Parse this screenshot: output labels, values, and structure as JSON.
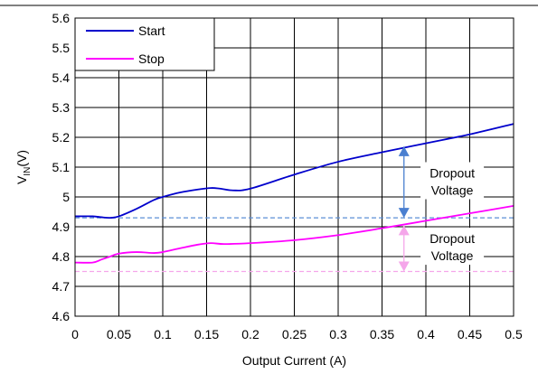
{
  "chart_data": {
    "type": "line",
    "xlabel": "Output Current (A)",
    "ylabel_main": "V",
    "ylabel_sub": "IN",
    "ylabel_unit": "(V)",
    "xlim": [
      0,
      0.5
    ],
    "ylim": [
      4.6,
      5.6
    ],
    "x_ticks": [
      0,
      0.05,
      0.1,
      0.15,
      0.2,
      0.25,
      0.3,
      0.35,
      0.4,
      0.45,
      0.5
    ],
    "x_tick_labels": [
      "0",
      "0.05",
      "0.1",
      "0.15",
      "0.2",
      "0.25",
      "0.3",
      "0.35",
      "0.4",
      "0.45",
      "0.5"
    ],
    "y_ticks": [
      4.6,
      4.7,
      4.8,
      4.9,
      5.0,
      5.1,
      5.2,
      5.3,
      5.4,
      5.5,
      5.6
    ],
    "y_tick_labels": [
      "4.6",
      "4.7",
      "4.8",
      "4.9",
      "5",
      "5.1",
      "5.2",
      "5.3",
      "5.4",
      "5.5",
      "5.6"
    ],
    "grid": true,
    "legend_position": "top-left",
    "series": [
      {
        "name": "Start",
        "color": "#0000cc",
        "x": [
          0,
          0.02,
          0.03,
          0.04,
          0.05,
          0.07,
          0.09,
          0.1,
          0.12,
          0.14,
          0.155,
          0.165,
          0.18,
          0.2,
          0.25,
          0.3,
          0.35,
          0.4,
          0.45,
          0.5
        ],
        "y": [
          4.935,
          4.935,
          4.932,
          4.93,
          4.935,
          4.96,
          4.99,
          5.0,
          5.015,
          5.025,
          5.03,
          5.028,
          5.022,
          5.028,
          5.075,
          5.118,
          5.15,
          5.18,
          5.21,
          5.245
        ]
      },
      {
        "name": "Stop",
        "color": "#ff00ff",
        "x": [
          0,
          0.02,
          0.03,
          0.04,
          0.05,
          0.07,
          0.09,
          0.1,
          0.12,
          0.14,
          0.155,
          0.17,
          0.2,
          0.25,
          0.3,
          0.35,
          0.4,
          0.45,
          0.5
        ],
        "y": [
          4.78,
          4.78,
          4.79,
          4.8,
          4.81,
          4.815,
          4.812,
          4.815,
          4.828,
          4.84,
          4.845,
          4.842,
          4.845,
          4.855,
          4.872,
          4.895,
          4.92,
          4.945,
          4.97
        ]
      }
    ],
    "reference_lines": [
      {
        "y": 4.93,
        "color": "#5b8fd6",
        "style": "dashed"
      },
      {
        "y": 4.75,
        "color": "#f5a6ea",
        "style": "dashed"
      }
    ],
    "annotations": [
      {
        "line1": "Dropout",
        "line2": "Voltage",
        "arrow_x": 0.375,
        "arrow_from": 5.17,
        "arrow_to": 4.93,
        "text_x": 0.43,
        "text_y": 5.05,
        "color": "#4a7fd0"
      },
      {
        "line1": "Dropout",
        "line2": "Voltage",
        "arrow_x": 0.375,
        "arrow_from": 4.905,
        "arrow_to": 4.75,
        "text_x": 0.43,
        "text_y": 4.83,
        "color": "#f5a6ea"
      }
    ]
  }
}
